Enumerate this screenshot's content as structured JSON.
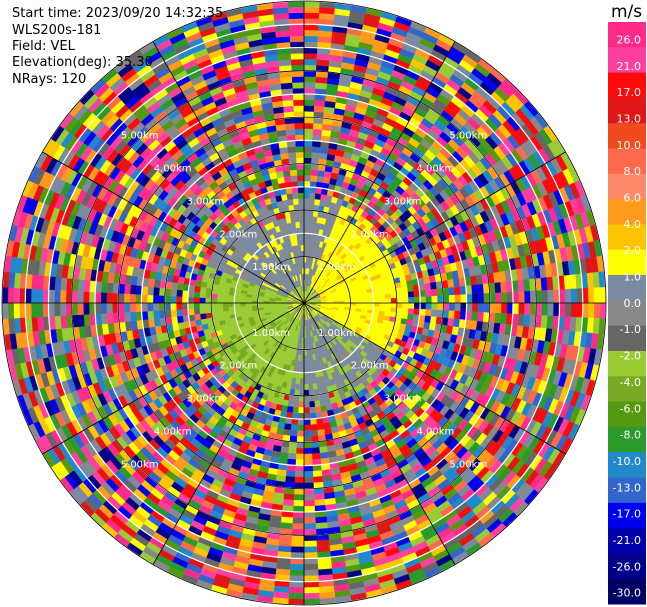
{
  "header": {
    "start_time": "Start time: 2023/09/20 14:32:35",
    "station": "WLS200s-181",
    "field": "Field: VEL",
    "elevation": "Elevation(deg): 35.30",
    "nrays": "NRays: 120"
  },
  "chart_data": {
    "type": "heatmap",
    "subtype": "ppi-radial-velocity",
    "title": "",
    "field": "VEL",
    "units": "m/s",
    "n_rays": 120,
    "elevation_deg": 35.3,
    "max_range_km": 6.5,
    "range_rings": [
      {
        "km": 1,
        "label": "1.00km"
      },
      {
        "km": 2,
        "label": "2.00km"
      },
      {
        "km": 3,
        "label": "3.00km"
      },
      {
        "km": 4,
        "label": "4.00km"
      },
      {
        "km": 5,
        "label": "5.00km"
      }
    ],
    "spokes_deg": [
      0,
      30,
      60,
      90,
      120,
      150,
      180,
      210,
      240,
      270,
      300,
      330
    ],
    "velocity_regions": [
      {
        "range_km": [
          0,
          0.7
        ],
        "description_values": [
          -2.0,
          0.0,
          2.0
        ]
      },
      {
        "range_km": [
          0.7,
          2.3
        ],
        "sector": "NE-E",
        "value": 3.0
      },
      {
        "range_km": [
          0.7,
          2.3
        ],
        "sector": "SW-W",
        "value": -2.5
      },
      {
        "range_km": [
          0.7,
          2.3
        ],
        "sector": "N-NW-S-SE",
        "value": 0.0
      },
      {
        "range_km": [
          2.3,
          6.5
        ],
        "value": "noise"
      }
    ],
    "colorbar": {
      "unit": "m/s",
      "ticks": [
        "26.0",
        "21.0",
        "17.0",
        "13.0",
        "10.0",
        "8.0",
        "6.0",
        "4.0",
        "2.0",
        "1.0",
        "0.0",
        "-1.0",
        "-2.0",
        "-4.0",
        "-6.0",
        "-8.0",
        "-10.0",
        "-13.0",
        "-17.0",
        "-21.0",
        "-26.0",
        "-30.0"
      ],
      "colors": [
        "#ff2a8a",
        "#ff3f9f",
        "#ff0a0a",
        "#e01616",
        "#f04a1e",
        "#ff6a4a",
        "#ff8a6a",
        "#ff9a1a",
        "#ffc400",
        "#ffff00",
        "#7a8aa0",
        "#888888",
        "#666666",
        "#99cc33",
        "#77aa22",
        "#559911",
        "#2a9a2a",
        "#2288cc",
        "#3366cc",
        "#0000ee",
        "#0000aa",
        "#000088",
        "#000066"
      ]
    }
  }
}
